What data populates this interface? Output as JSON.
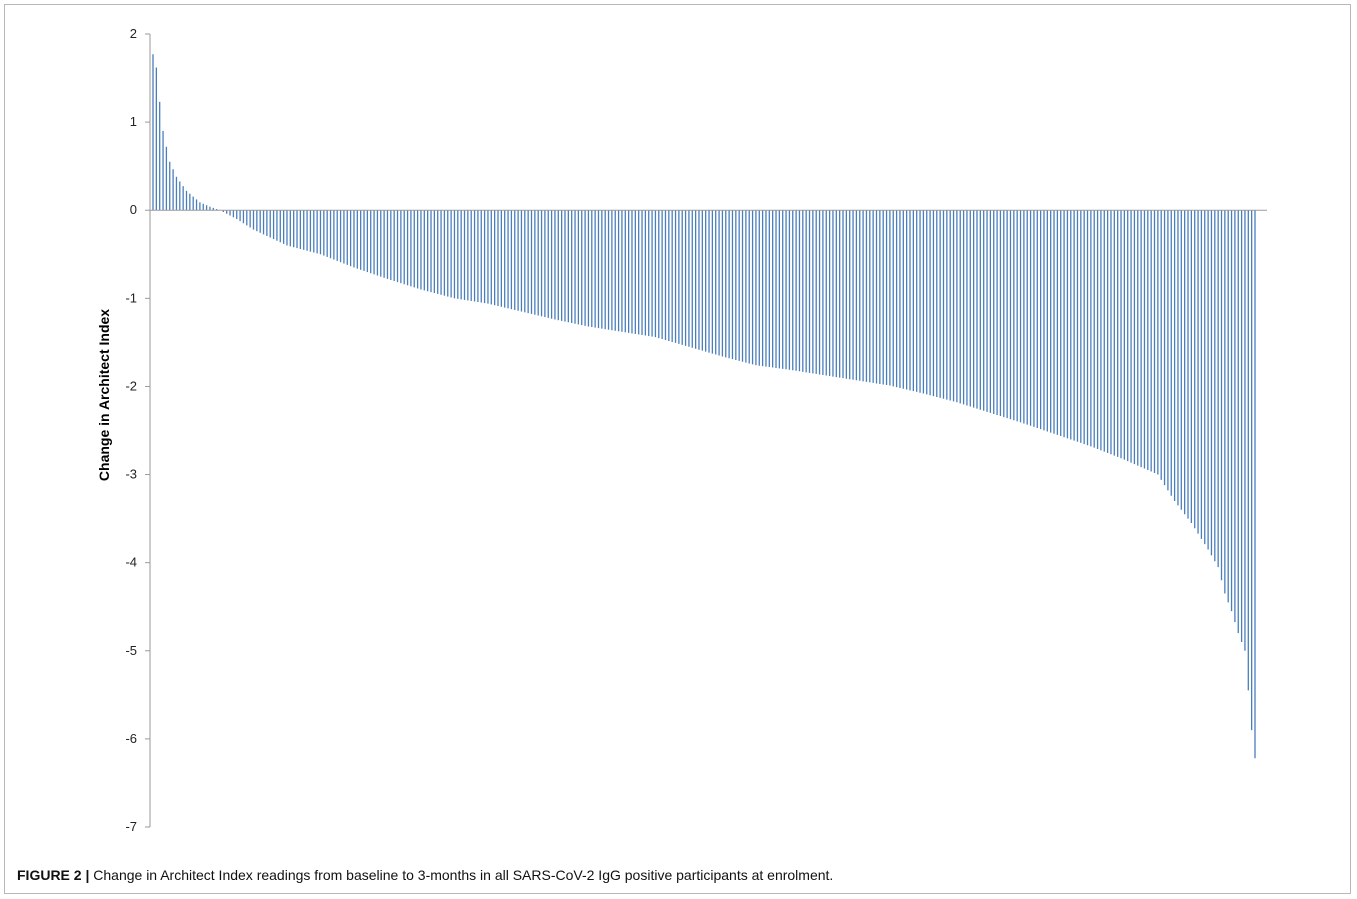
{
  "caption": {
    "label": "FIGURE 2 |",
    "text": " Change in Architect Index readings from baseline to 3-months in all SARS-CoV-2 IgG positive participants at enrolment."
  },
  "chart_data": {
    "type": "bar",
    "orientation": "vertical",
    "sorted": "descending",
    "title": "",
    "xlabel": "",
    "ylabel": "Change in Architect Index",
    "ylim": [
      -7,
      2
    ],
    "yticks": [
      2,
      1,
      0,
      -1,
      -2,
      -3,
      -4,
      -5,
      -6,
      -7
    ],
    "grid": false,
    "legend": "none",
    "bar_color": "#4a7ebb",
    "bar_count": 330,
    "anchor_values": [
      [
        0,
        1.77
      ],
      [
        1,
        1.62
      ],
      [
        2,
        1.23
      ],
      [
        3,
        0.9
      ],
      [
        4,
        0.72
      ],
      [
        5,
        0.55
      ],
      [
        7,
        0.38
      ],
      [
        10,
        0.22
      ],
      [
        14,
        0.09
      ],
      [
        17,
        0.04
      ],
      [
        20,
        0.0
      ],
      [
        25,
        -0.1
      ],
      [
        30,
        -0.22
      ],
      [
        40,
        -0.4
      ],
      [
        50,
        -0.5
      ],
      [
        60,
        -0.65
      ],
      [
        70,
        -0.78
      ],
      [
        80,
        -0.9
      ],
      [
        90,
        -1.0
      ],
      [
        100,
        -1.06
      ],
      [
        110,
        -1.15
      ],
      [
        120,
        -1.24
      ],
      [
        130,
        -1.32
      ],
      [
        140,
        -1.38
      ],
      [
        150,
        -1.44
      ],
      [
        160,
        -1.55
      ],
      [
        170,
        -1.66
      ],
      [
        180,
        -1.76
      ],
      [
        190,
        -1.81
      ],
      [
        200,
        -1.87
      ],
      [
        210,
        -1.93
      ],
      [
        220,
        -1.99
      ],
      [
        230,
        -2.08
      ],
      [
        240,
        -2.18
      ],
      [
        250,
        -2.3
      ],
      [
        260,
        -2.42
      ],
      [
        270,
        -2.55
      ],
      [
        280,
        -2.68
      ],
      [
        290,
        -2.83
      ],
      [
        300,
        -3.0
      ],
      [
        305,
        -3.3
      ],
      [
        310,
        -3.55
      ],
      [
        315,
        -3.85
      ],
      [
        318,
        -4.05
      ],
      [
        320,
        -4.35
      ],
      [
        322,
        -4.55
      ],
      [
        324,
        -4.8
      ],
      [
        326,
        -5.0
      ],
      [
        327,
        -5.45
      ],
      [
        328,
        -5.9
      ],
      [
        329,
        -6.22
      ]
    ]
  }
}
